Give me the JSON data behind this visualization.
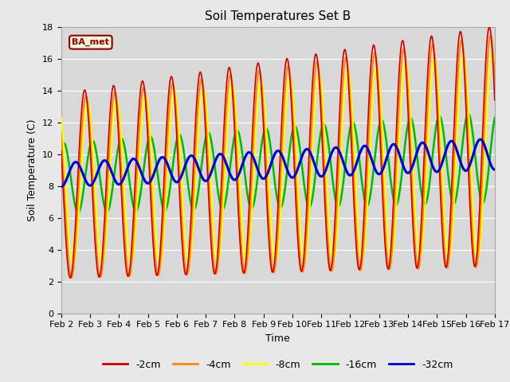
{
  "title": "Soil Temperatures Set B",
  "xlabel": "Time",
  "ylabel": "Soil Temperature (C)",
  "ylim": [
    0,
    18
  ],
  "background_color": "#e8e8e8",
  "plot_bg_color": "#d8d8d8",
  "legend_label": "BA_met",
  "legend_label_color": "#8B0000",
  "legend_label_bg": "#f5f5dc",
  "xtick_labels": [
    "Feb 2",
    "Feb 3",
    "Feb 4",
    "Feb 5",
    "Feb 6",
    "Feb 7",
    "Feb 8",
    "Feb 9",
    "Feb 10",
    "Feb 11",
    "Feb 12",
    "Feb 13",
    "Feb 14",
    "Feb 15",
    "Feb 16",
    "Feb 17"
  ],
  "series_colors": {
    "-2cm": "#cc0000",
    "-4cm": "#ff8800",
    "-8cm": "#ffff00",
    "-16cm": "#00bb00",
    "-32cm": "#0000cc"
  },
  "series_linewidths": {
    "-2cm": 1.2,
    "-4cm": 1.5,
    "-8cm": 1.5,
    "-16cm": 1.8,
    "-32cm": 2.2
  }
}
